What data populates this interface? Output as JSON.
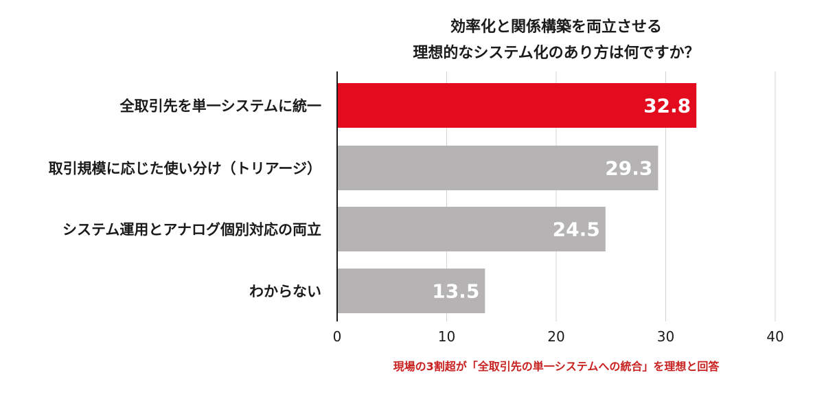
{
  "chart_data": {
    "type": "bar",
    "orientation": "horizontal",
    "title_lines": [
      "効率化と関係構築を両立させる",
      "理想的なシステム化のあり方は何ですか？"
    ],
    "categories": [
      "全取引先を単一システムに統一",
      "取引規模に応じた使い分け（トリアージ）",
      "システム運用とアナログ個別対応の両立",
      "わからない"
    ],
    "values": [
      32.8,
      29.3,
      24.5,
      13.5
    ],
    "value_labels": [
      "32.8",
      "29.3",
      "24.5",
      "13.5"
    ],
    "highlight_index": 0,
    "xlim": [
      0,
      40
    ],
    "x_ticks": [
      0,
      10,
      20,
      30,
      40
    ],
    "x_tick_labels": [
      "0",
      "10",
      "20",
      "30",
      "40"
    ],
    "grid": true,
    "legend": "none",
    "annotation": "現場の3割超が「全取引先の単一システムへの統合」を理想と回答"
  },
  "colors": {
    "highlight_bar": "#e30c1e",
    "default_bar": "#b5b3b3",
    "annotation_text": "#c8201f",
    "grid": "#d4d4d4",
    "text": "#1a1a1a"
  }
}
